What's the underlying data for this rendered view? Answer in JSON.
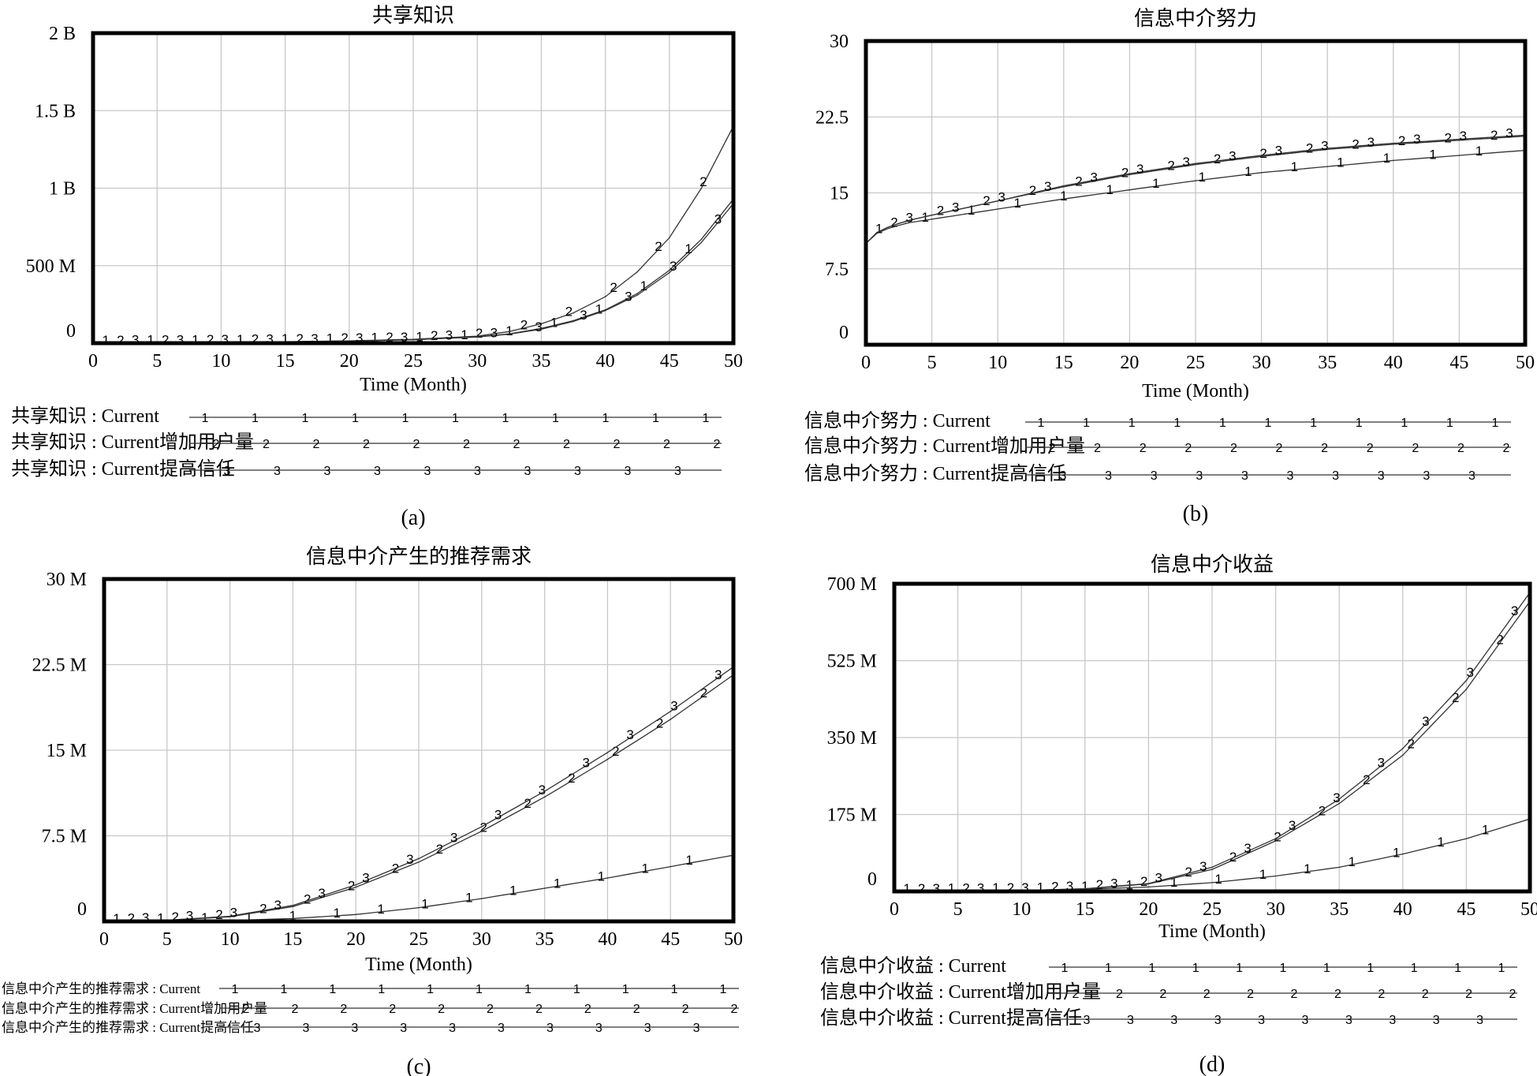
{
  "chart_data": [
    {
      "type": "line",
      "caption": "(a)",
      "title": "共享知识",
      "xlabel": "Time (Month)",
      "ylabel": "",
      "xlim": [
        0,
        50
      ],
      "ylim": [
        0,
        2000000000
      ],
      "x_ticks": [
        0,
        5,
        10,
        15,
        20,
        25,
        30,
        35,
        40,
        45,
        50
      ],
      "y_ticks": [
        0,
        500000000,
        1000000000,
        1500000000,
        2000000000
      ],
      "y_tick_labels": [
        "0",
        "500 M",
        "1 B",
        "1.5 B",
        "2 B"
      ],
      "grid": true,
      "legend_position": "bottom",
      "x": [
        0,
        5,
        10,
        15,
        20,
        25,
        30,
        32.5,
        35,
        37.5,
        40,
        42.5,
        45,
        47.5,
        50
      ],
      "series": [
        {
          "name": "共享知识 : Current",
          "marker": "1",
          "values": [
            0,
            2000000,
            5000000,
            9000000,
            14000000,
            22000000,
            40000000,
            60000000,
            95000000,
            145000000,
            215000000,
            320000000,
            470000000,
            670000000,
            930000000
          ]
        },
        {
          "name": "共享知识 : Current增加用户量",
          "marker": "2",
          "values": [
            0,
            2000000,
            5000000,
            9000000,
            15000000,
            25000000,
            45000000,
            75000000,
            125000000,
            195000000,
            300000000,
            460000000,
            680000000,
            1000000000,
            1400000000
          ]
        },
        {
          "name": "共享知识 : Current提高信任",
          "marker": "3",
          "values": [
            0,
            2000000,
            5000000,
            9000000,
            14000000,
            22000000,
            40000000,
            58000000,
            90000000,
            140000000,
            210000000,
            310000000,
            455000000,
            650000000,
            900000000
          ]
        }
      ]
    },
    {
      "type": "line",
      "caption": "(b)",
      "title": "信息中介努力",
      "xlabel": "Time (Month)",
      "ylabel": "",
      "xlim": [
        0,
        50
      ],
      "ylim": [
        0,
        30
      ],
      "x_ticks": [
        0,
        5,
        10,
        15,
        20,
        25,
        30,
        35,
        40,
        45,
        50
      ],
      "y_ticks": [
        0,
        7.5,
        15,
        22.5,
        30
      ],
      "y_tick_labels": [
        "0",
        "7.5",
        "15",
        "22.5",
        "30"
      ],
      "grid": true,
      "legend_position": "bottom",
      "x": [
        0,
        1,
        3,
        5,
        7.5,
        10,
        15,
        20,
        25,
        30,
        35,
        40,
        45,
        50
      ],
      "series": [
        {
          "name": "信息中介努力 : Current",
          "marker": "1",
          "values": [
            10,
            11.2,
            12,
            12.4,
            12.9,
            13.4,
            14.4,
            15.3,
            16.2,
            17,
            17.6,
            18.2,
            18.7,
            19.2
          ]
        },
        {
          "name": "信息中介努力 : Current增加用户量",
          "marker": "2",
          "values": [
            10,
            11.3,
            12.2,
            12.8,
            13.5,
            14.2,
            15.6,
            16.8,
            17.8,
            18.6,
            19.3,
            19.8,
            20.2,
            20.6
          ]
        },
        {
          "name": "信息中介努力 : Current提高信任",
          "marker": "3",
          "values": [
            10,
            11.3,
            12.2,
            12.8,
            13.5,
            14.2,
            15.7,
            16.9,
            17.9,
            18.7,
            19.4,
            19.9,
            20.3,
            20.7
          ]
        }
      ]
    },
    {
      "type": "line",
      "caption": "(c)",
      "title": "信息中介产生的推荐需求",
      "xlabel": "Time (Month)",
      "ylabel": "",
      "xlim": [
        0,
        50
      ],
      "ylim": [
        0,
        30000000
      ],
      "x_ticks": [
        0,
        5,
        10,
        15,
        20,
        25,
        30,
        35,
        40,
        45,
        50
      ],
      "y_ticks": [
        0,
        7500000,
        15000000,
        22500000,
        30000000
      ],
      "y_tick_labels": [
        "0",
        "7.5 M",
        "15 M",
        "22.5 M",
        "30 M"
      ],
      "grid": true,
      "legend_position": "bottom",
      "x": [
        0,
        5,
        10,
        15,
        20,
        25,
        30,
        35,
        40,
        45,
        50
      ],
      "series": [
        {
          "name": "信息中介产生的推荐需求 : Current",
          "marker": "1",
          "values": [
            0,
            20000,
            80000,
            250000,
            600000,
            1200000,
            2000000,
            2900000,
            3800000,
            4800000,
            5800000
          ]
        },
        {
          "name": "信息中介产生的推荐需求 : Current增加用户量",
          "marker": "2",
          "values": [
            0,
            100000,
            400000,
            1300000,
            3000000,
            5200000,
            7900000,
            10900000,
            14200000,
            17700000,
            21600000
          ]
        },
        {
          "name": "信息中介产生的推荐需求 : Current提高信任",
          "marker": "3",
          "values": [
            0,
            100000,
            450000,
            1400000,
            3200000,
            5500000,
            8300000,
            11400000,
            14800000,
            18400000,
            22300000
          ]
        }
      ]
    },
    {
      "type": "line",
      "caption": "(d)",
      "title": "信息中介收益",
      "xlabel": "Time (Month)",
      "ylabel": "",
      "xlim": [
        0,
        50
      ],
      "ylim": [
        0,
        700000000
      ],
      "x_ticks": [
        0,
        5,
        10,
        15,
        20,
        25,
        30,
        35,
        40,
        45,
        50
      ],
      "y_ticks": [
        0,
        175000000,
        350000000,
        525000000,
        700000000
      ],
      "y_tick_labels": [
        "0",
        "175 M",
        "350 M",
        "525 M",
        "700 M"
      ],
      "grid": true,
      "legend_position": "bottom",
      "x": [
        0,
        5,
        10,
        15,
        20,
        25,
        30,
        35,
        40,
        45,
        50
      ],
      "series": [
        {
          "name": "信息中介收益 : Current",
          "marker": "1",
          "values": [
            0,
            500000,
            2000000,
            5000000,
            10000000,
            20000000,
            35000000,
            55000000,
            85000000,
            120000000,
            165000000
          ]
        },
        {
          "name": "信息中介收益 : Current增加用户量",
          "marker": "2",
          "values": [
            0,
            500000,
            2000000,
            6000000,
            17000000,
            50000000,
            115000000,
            200000000,
            310000000,
            460000000,
            660000000
          ]
        },
        {
          "name": "信息中介收益 : Current提高信任",
          "marker": "3",
          "values": [
            0,
            500000,
            2000000,
            6000000,
            18000000,
            55000000,
            120000000,
            210000000,
            325000000,
            480000000,
            680000000
          ]
        }
      ]
    }
  ]
}
